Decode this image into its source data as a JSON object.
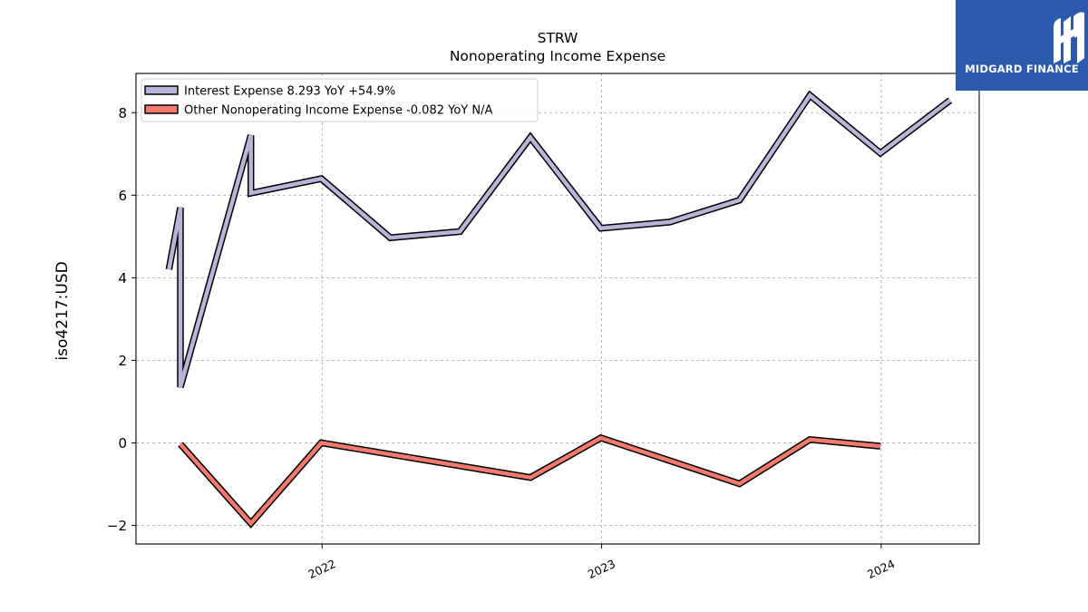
{
  "chart_data": {
    "type": "line",
    "title": "STRW",
    "subtitle": "Nonoperating Income Expense",
    "ylabel": "iso4217:USD",
    "xlabel": "",
    "ylim": [
      -2.45,
      8.95
    ],
    "xlim": [
      "2021-05-03",
      "2024-05-08"
    ],
    "yticks": [
      -2,
      0,
      2,
      4,
      6,
      8
    ],
    "ytick_labels": [
      "−2",
      "0",
      "2",
      "4",
      "6",
      "8"
    ],
    "xticks": [
      "2022-01-01",
      "2023-01-01",
      "2024-01-01"
    ],
    "xtick_labels": [
      "2022",
      "2023",
      "2024"
    ],
    "grid": true,
    "legend": "top-left",
    "series": [
      {
        "name": "Interest Expense  8.293 YoY +54.9%",
        "color": "#b7b5d8",
        "points": [
          {
            "x": "2021-06-15",
            "y": 4.2
          },
          {
            "x": "2021-06-30",
            "y": 5.7
          },
          {
            "x": "2021-06-30",
            "y": 1.35
          },
          {
            "x": "2021-09-30",
            "y": 7.45
          },
          {
            "x": "2021-09-30",
            "y": 6.05
          },
          {
            "x": "2021-12-31",
            "y": 6.4
          },
          {
            "x": "2022-03-31",
            "y": 4.97
          },
          {
            "x": "2022-06-30",
            "y": 5.12
          },
          {
            "x": "2022-09-30",
            "y": 7.4
          },
          {
            "x": "2022-12-31",
            "y": 5.2
          },
          {
            "x": "2023-03-31",
            "y": 5.35
          },
          {
            "x": "2023-06-30",
            "y": 5.88
          },
          {
            "x": "2023-09-30",
            "y": 8.42
          },
          {
            "x": "2023-12-31",
            "y": 7.02
          },
          {
            "x": "2024-03-31",
            "y": 8.3
          }
        ]
      },
      {
        "name": "Other Nonoperating Income Expense  -0.082 YoY N/A",
        "color": "#f47a6d",
        "points": [
          {
            "x": "2021-06-30",
            "y": -0.03
          },
          {
            "x": "2021-09-30",
            "y": -1.95
          },
          {
            "x": "2021-12-31",
            "y": 0.0
          },
          {
            "x": "2022-09-30",
            "y": -0.84
          },
          {
            "x": "2022-12-31",
            "y": 0.12
          },
          {
            "x": "2023-06-30",
            "y": -0.99
          },
          {
            "x": "2023-09-30",
            "y": 0.08
          },
          {
            "x": "2023-12-31",
            "y": -0.08
          }
        ]
      }
    ]
  },
  "logo": {
    "text": "MIDGARD FINANCE",
    "color": "#2b5aad",
    "icon": "midgard-logo-icon"
  }
}
